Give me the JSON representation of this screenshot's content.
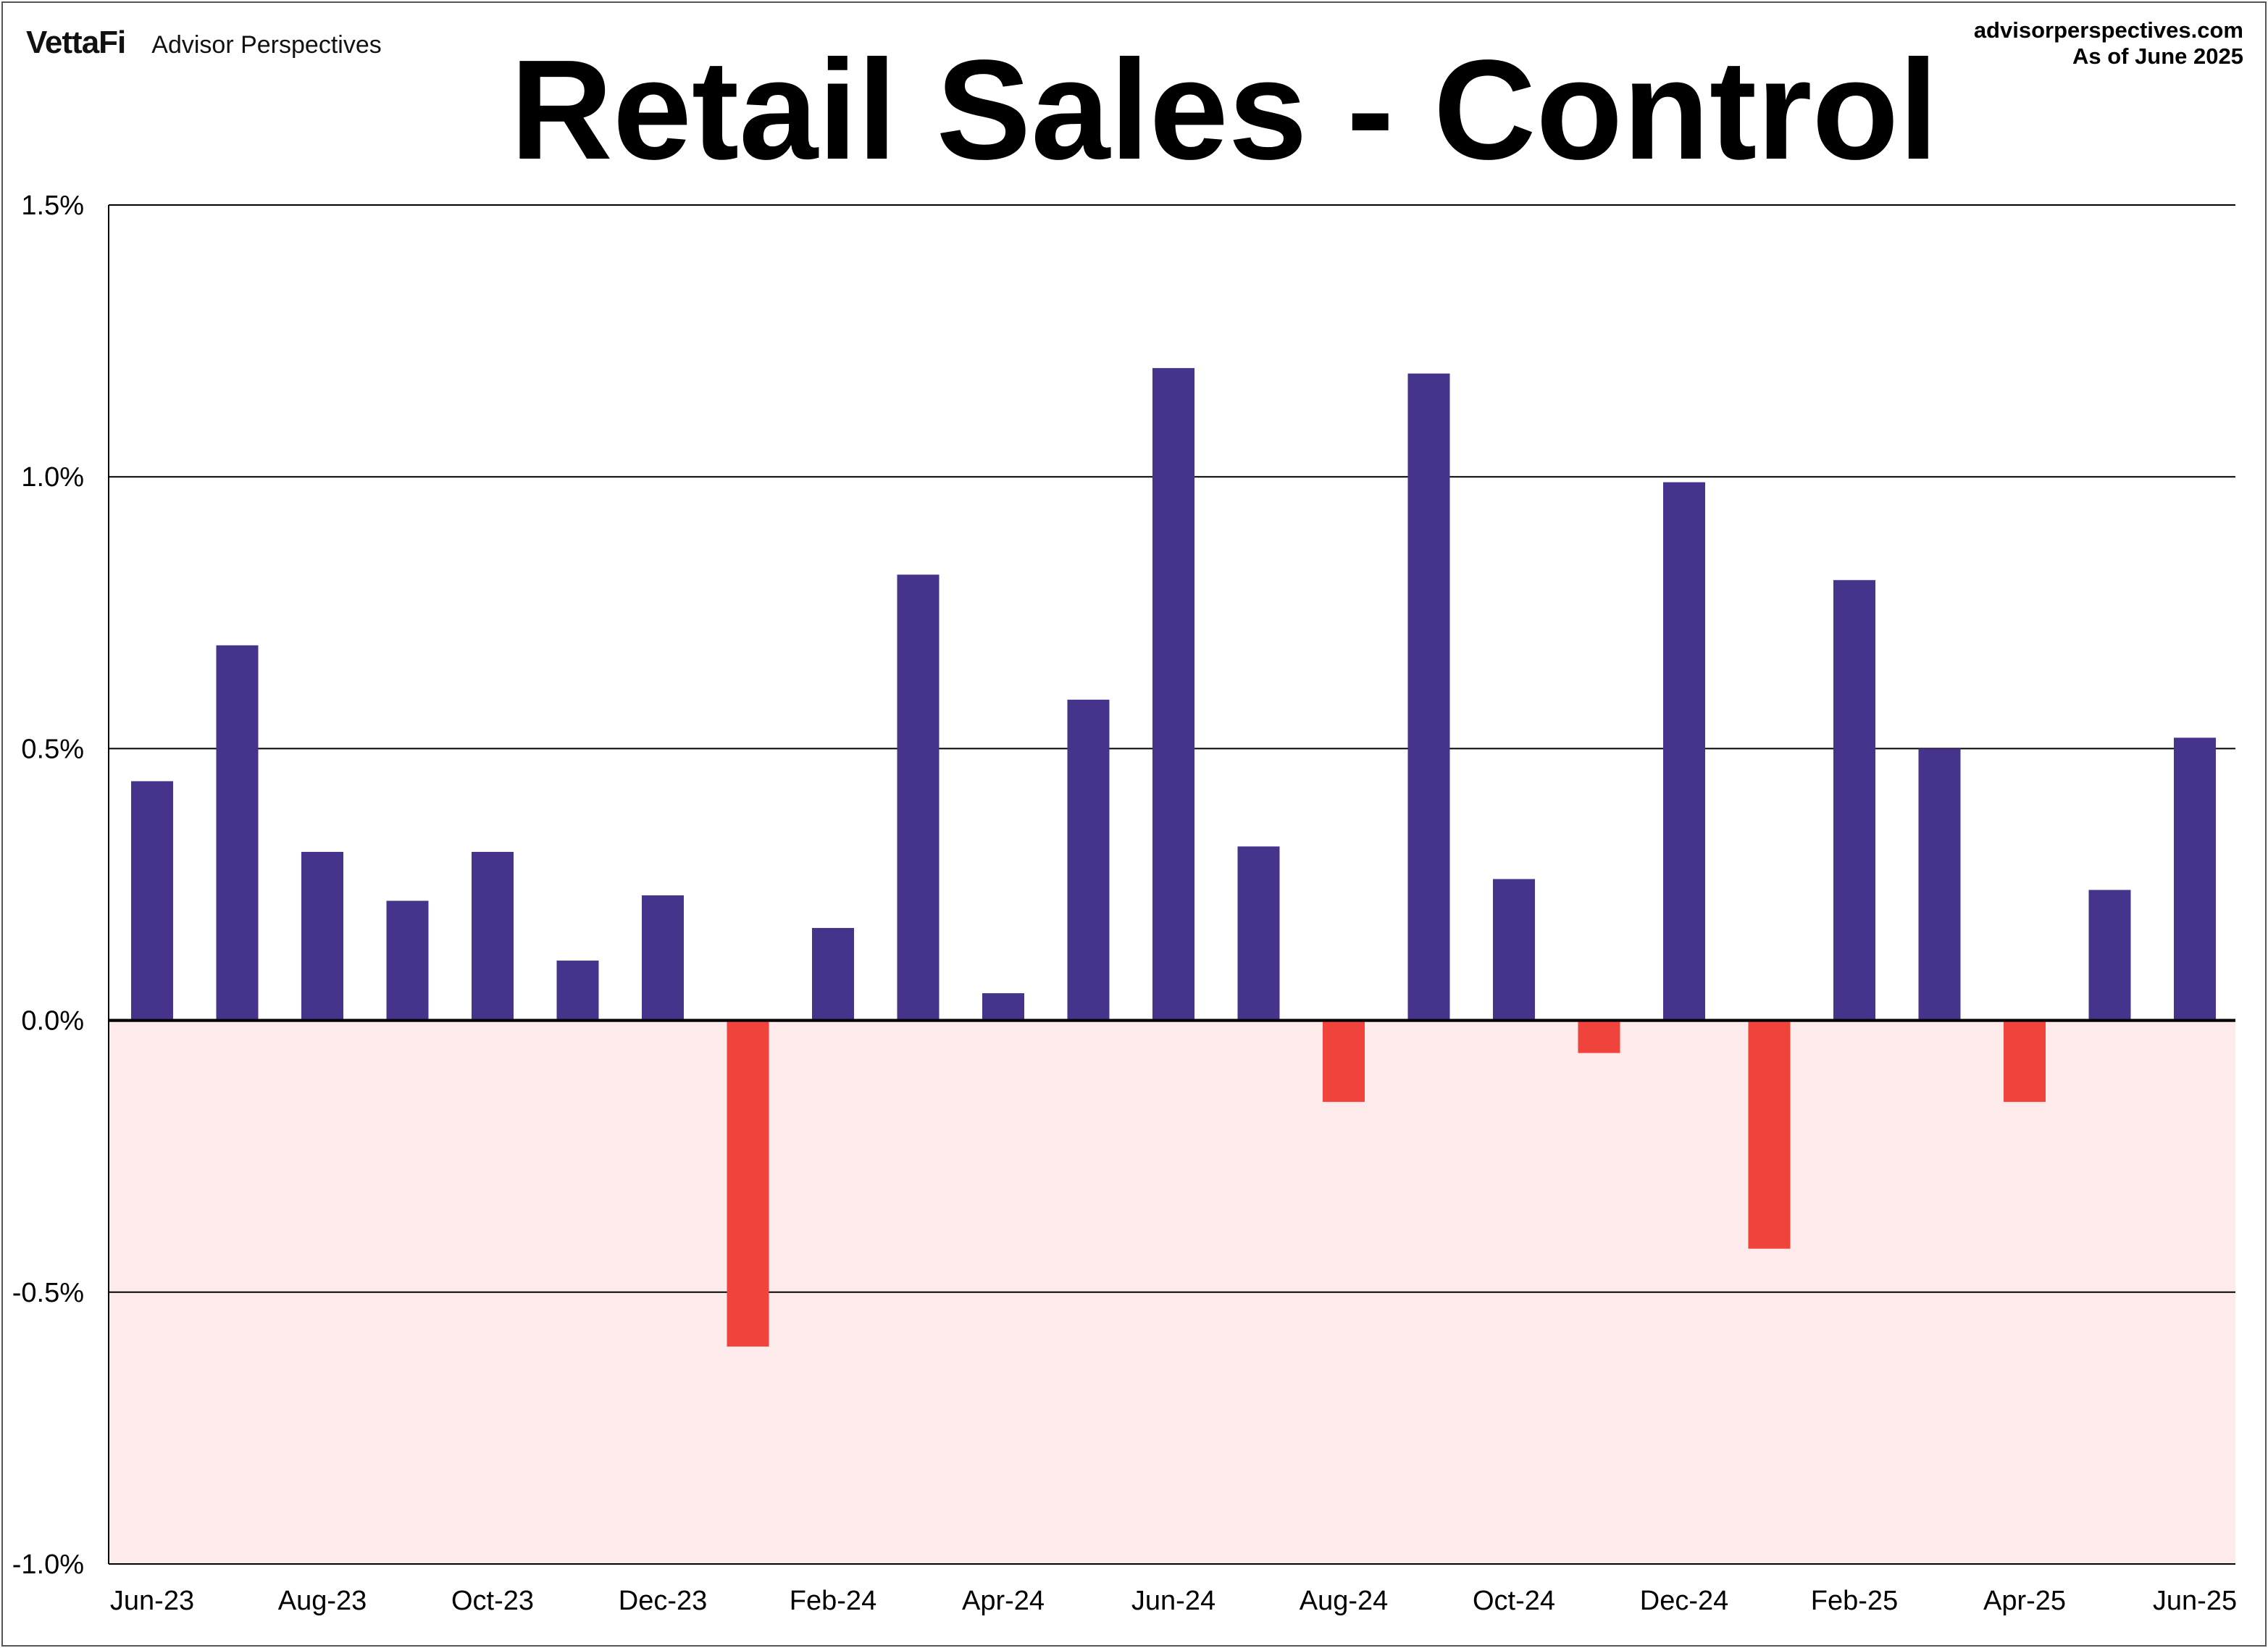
{
  "header": {
    "brand_logo": "VettaFi",
    "brand_name": "Advisor Perspectives",
    "site": "advisorperspectives.com",
    "as_of": "As of June 2025"
  },
  "colors": {
    "positive": "#46338b",
    "negative": "#f0433c",
    "negative_zone": "#fdeaea",
    "grid": "#000000"
  },
  "chart_data": {
    "type": "bar",
    "title": "Retail Sales - Control",
    "xlabel": "",
    "ylabel": "",
    "ylim": [
      -1.0,
      1.5
    ],
    "yticks": [
      1.5,
      1.0,
      0.5,
      0.0,
      -0.5,
      -1.0
    ],
    "ytick_labels": [
      "1.5%",
      "1.0%",
      "0.5%",
      "0.0%",
      "-0.5%",
      "-1.0%"
    ],
    "grid": "horizontal",
    "negative_zone_shaded": true,
    "categories": [
      "Jun-23",
      "Jul-23",
      "Aug-23",
      "Sep-23",
      "Oct-23",
      "Nov-23",
      "Dec-23",
      "Jan-24",
      "Feb-24",
      "Mar-24",
      "Apr-24",
      "May-24",
      "Jun-24",
      "Jul-24",
      "Aug-24",
      "Sep-24",
      "Oct-24",
      "Nov-24",
      "Dec-24",
      "Jan-25",
      "Feb-25",
      "Mar-25",
      "Apr-25",
      "May-25",
      "Jun-25"
    ],
    "xtick_labels": [
      "Jun-23",
      "Aug-23",
      "Oct-23",
      "Dec-23",
      "Feb-24",
      "Apr-24",
      "Jun-24",
      "Aug-24",
      "Oct-24",
      "Dec-24",
      "Feb-25",
      "Apr-25",
      "Jun-25"
    ],
    "values": [
      0.44,
      0.69,
      0.31,
      0.22,
      0.31,
      0.11,
      0.23,
      -0.6,
      0.17,
      0.82,
      0.05,
      0.59,
      1.2,
      0.32,
      -0.15,
      1.19,
      0.26,
      -0.06,
      0.99,
      -0.42,
      0.81,
      0.5,
      -0.15,
      0.24,
      0.52
    ]
  }
}
